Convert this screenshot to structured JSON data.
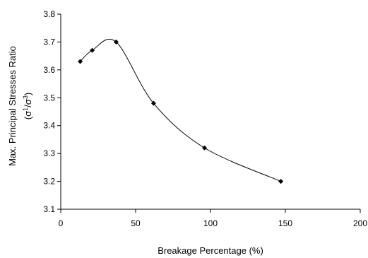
{
  "chart_data": {
    "type": "scatter",
    "title": "",
    "xlabel": "Breakage Percentage (%)",
    "ylabel": "Max. Principal Stresses Ratio",
    "ylabel_sub": {
      "open": "(",
      "sigma_a": "σ",
      "sup_a": "1",
      "slash": "/",
      "sigma_b": "σ",
      "sup_b": "3",
      "close": ")"
    },
    "xlim": [
      0,
      200
    ],
    "ylim": [
      3.1,
      3.8
    ],
    "xticks": [
      0,
      50,
      100,
      150,
      200
    ],
    "yticks": [
      3.1,
      3.2,
      3.3,
      3.4,
      3.5,
      3.6,
      3.7,
      3.8
    ],
    "xtick_labels": [
      "0",
      "50",
      "100",
      "150",
      "200"
    ],
    "ytick_labels": [
      "3.1",
      "3.2",
      "3.3",
      "3.4",
      "3.5",
      "3.6",
      "3.7",
      "3.8"
    ],
    "grid": false,
    "legend": "none",
    "marker": "diamond",
    "line": "smooth",
    "series": [
      {
        "x": [
          13,
          21,
          37,
          62,
          96,
          147
        ],
        "y": [
          3.63,
          3.67,
          3.7,
          3.48,
          3.32,
          3.2
        ]
      }
    ],
    "colors": {
      "line": "#000000",
      "marker": "#000000",
      "axis": "#000000"
    }
  }
}
